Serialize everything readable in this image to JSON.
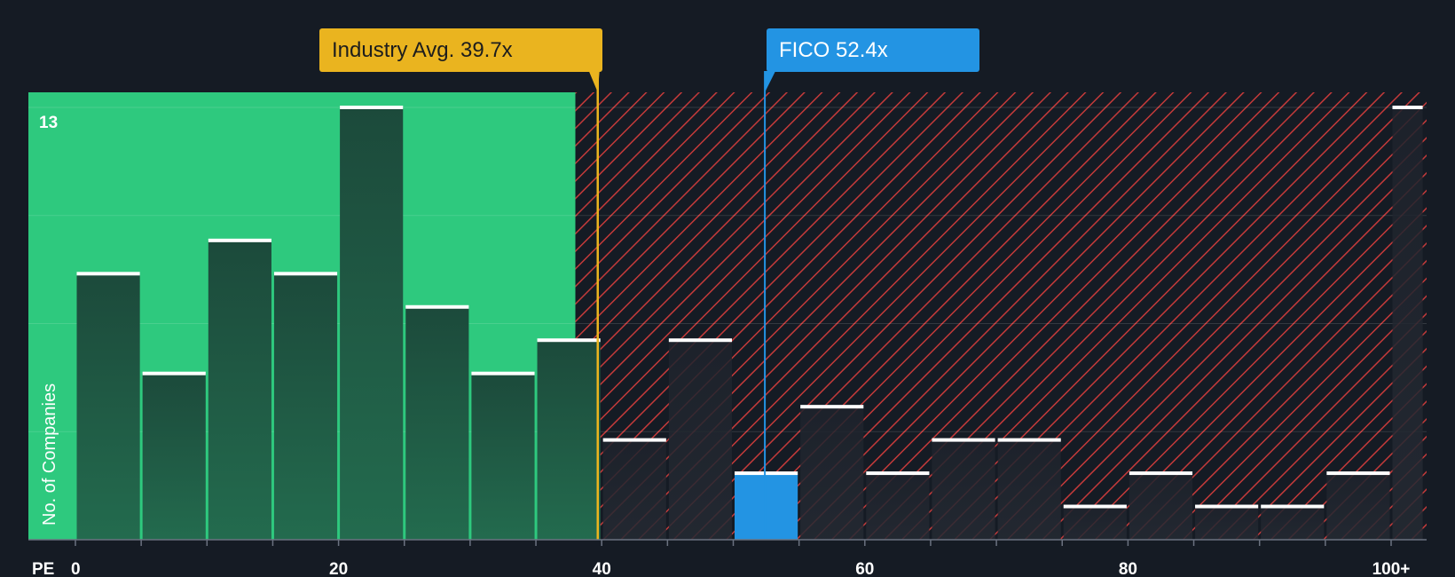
{
  "callouts": {
    "industry_label": "Industry Avg. 39.7x",
    "fico_label": "FICO 52.4x"
  },
  "colors": {
    "background": "#151b24",
    "fair_zone": "#2ec97e",
    "overvalued_stripe": "#c43a3a",
    "industry_line": "#eab41f",
    "highlight": "#2394e3"
  },
  "chart_data": {
    "type": "bar",
    "x_axis_label": "PE",
    "y_axis_label": "No. of Companies",
    "y_max_label": "13",
    "ylim": [
      0,
      13
    ],
    "xlim": [
      0,
      102.5
    ],
    "x_ticks": [
      {
        "value": 0,
        "label": "0"
      },
      {
        "value": 20,
        "label": "20"
      },
      {
        "value": 40,
        "label": "40"
      },
      {
        "value": 60,
        "label": "60"
      },
      {
        "value": 80,
        "label": "80"
      },
      {
        "value": 100,
        "label": "100+"
      }
    ],
    "bins": [
      {
        "start": 0,
        "end": 5,
        "count": 8
      },
      {
        "start": 5,
        "end": 10,
        "count": 5
      },
      {
        "start": 10,
        "end": 15,
        "count": 9
      },
      {
        "start": 15,
        "end": 20,
        "count": 8
      },
      {
        "start": 20,
        "end": 25,
        "count": 13
      },
      {
        "start": 25,
        "end": 30,
        "count": 7
      },
      {
        "start": 30,
        "end": 35,
        "count": 5
      },
      {
        "start": 35,
        "end": 40,
        "count": 6
      },
      {
        "start": 40,
        "end": 45,
        "count": 3
      },
      {
        "start": 45,
        "end": 50,
        "count": 6
      },
      {
        "start": 50,
        "end": 55,
        "count": 2,
        "highlight": true
      },
      {
        "start": 55,
        "end": 60,
        "count": 4
      },
      {
        "start": 60,
        "end": 65,
        "count": 2
      },
      {
        "start": 65,
        "end": 70,
        "count": 3
      },
      {
        "start": 70,
        "end": 75,
        "count": 3
      },
      {
        "start": 75,
        "end": 80,
        "count": 1
      },
      {
        "start": 80,
        "end": 85,
        "count": 2
      },
      {
        "start": 85,
        "end": 90,
        "count": 1
      },
      {
        "start": 90,
        "end": 95,
        "count": 1
      },
      {
        "start": 95,
        "end": 100,
        "count": 2
      },
      {
        "start": 100,
        "end": 102.5,
        "count": 13
      }
    ],
    "fair_zone_end": 38,
    "industry_avg": 39.7,
    "company_pe": 52.4,
    "grid": true
  }
}
